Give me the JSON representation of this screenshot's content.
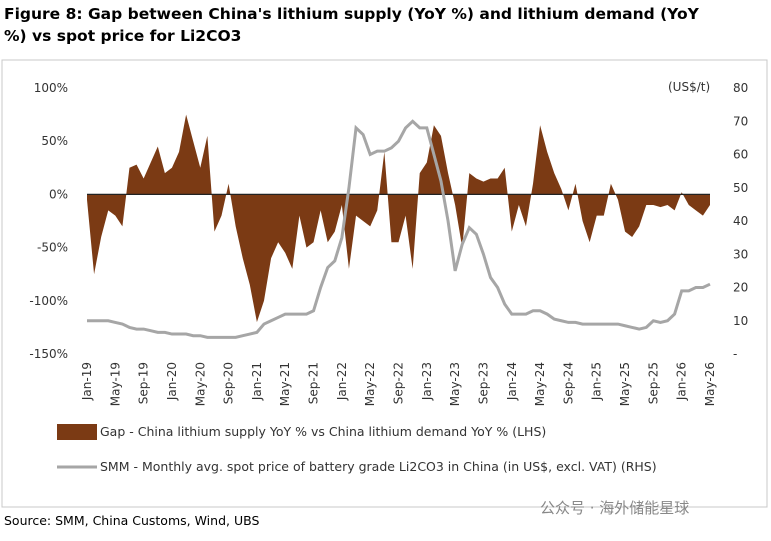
{
  "chart_data": {
    "type": "area-line",
    "title": [
      "Figure 8: Gap between China's lithium supply (YoY %) and lithium demand (YoY",
      "%) vs spot price for Li2CO3"
    ],
    "y2_label": "(US$/t)",
    "source": "Source: SMM, China Customs, Wind, UBS",
    "watermark": "公众号 · 海外储能星球",
    "categories": [
      "Jan-19",
      null,
      null,
      null,
      "May-19",
      null,
      null,
      null,
      "Sep-19",
      null,
      null,
      null,
      "Jan-20",
      null,
      null,
      null,
      "May-20",
      null,
      null,
      null,
      "Sep-20",
      null,
      null,
      null,
      "Jan-21",
      null,
      null,
      null,
      "May-21",
      null,
      null,
      null,
      "Sep-21",
      null,
      null,
      null,
      "Jan-22",
      null,
      null,
      null,
      "May-22",
      null,
      null,
      null,
      "Sep-22",
      null,
      null,
      null,
      "Jan-23",
      null,
      null,
      null,
      "May-23",
      null,
      null,
      null,
      "Sep-23",
      null,
      null,
      null,
      "Jan-24",
      null,
      null,
      null,
      "May-24",
      null,
      null,
      null,
      "Sep-24",
      null,
      null,
      null,
      "Jan-25",
      null,
      null,
      null,
      "May-25",
      null,
      null,
      null,
      "Sep-25",
      null,
      null,
      null,
      "Jan-26",
      null,
      null,
      null,
      "May-26"
    ],
    "series": [
      {
        "name": "Gap - China lithium supply YoY % vs China lithium demand YoY % (LHS)",
        "color": "#7b3a14",
        "kind": "area",
        "values": [
          -5,
          -75,
          -40,
          -15,
          -20,
          -30,
          25,
          28,
          15,
          30,
          45,
          20,
          25,
          40,
          75,
          50,
          25,
          55,
          -35,
          -20,
          10,
          -30,
          -60,
          -85,
          -120,
          -100,
          -60,
          -45,
          -55,
          -70,
          -20,
          -50,
          -45,
          -15,
          -45,
          -35,
          -10,
          -70,
          -20,
          -25,
          -30,
          -15,
          40,
          -45,
          -45,
          -20,
          -70,
          20,
          30,
          65,
          55,
          20,
          -10,
          -50,
          20,
          15,
          12,
          15,
          15,
          25,
          -35,
          -10,
          -30,
          10,
          65,
          40,
          20,
          5,
          -15,
          10,
          -25,
          -45,
          -20,
          -20,
          10,
          -5,
          -35,
          -40,
          -30,
          -10,
          -10,
          -12,
          -10,
          -15,
          2,
          -10,
          -15,
          -20,
          -10
        ]
      },
      {
        "name": "SMM - Monthly avg. spot price of battery grade Li2CO3 in China (in US$, excl. VAT) (RHS)",
        "color": "#a6a6a6",
        "kind": "line",
        "axis": "y2",
        "values": [
          10,
          10,
          10,
          10,
          9.5,
          9,
          8,
          7.5,
          7.5,
          7,
          6.5,
          6.5,
          6,
          6,
          6,
          5.5,
          5.5,
          5,
          5,
          5,
          5,
          5,
          5.5,
          6,
          6.5,
          9,
          10,
          11,
          12,
          12,
          12,
          12,
          13,
          20,
          26,
          28,
          35,
          50,
          68,
          66,
          60,
          61,
          61,
          62,
          64,
          68,
          70,
          68,
          68,
          60,
          52,
          40,
          25,
          33,
          38,
          36,
          30,
          23,
          20,
          15,
          12,
          12,
          12,
          13,
          13,
          12,
          10.5,
          10,
          9.5,
          9.5,
          9,
          9,
          9,
          9,
          9,
          9,
          8.5,
          8,
          7.5,
          8,
          10,
          9.5,
          10,
          12,
          19,
          19,
          20,
          20,
          21
        ]
      }
    ],
    "ylim": [
      -150,
      100
    ],
    "yticks": [
      {
        "value": -150,
        "label": "-150%"
      },
      {
        "value": -100,
        "label": "-100%"
      },
      {
        "value": -50,
        "label": "-50%"
      },
      {
        "value": 0,
        "label": "0%"
      },
      {
        "value": 50,
        "label": "50%"
      },
      {
        "value": 100,
        "label": "100%"
      }
    ],
    "y2lim": [
      0,
      80
    ],
    "y2ticks": [
      {
        "value": 0,
        "label": "-"
      },
      10,
      20,
      30,
      40,
      50,
      60,
      70,
      80
    ],
    "grid": false
  }
}
